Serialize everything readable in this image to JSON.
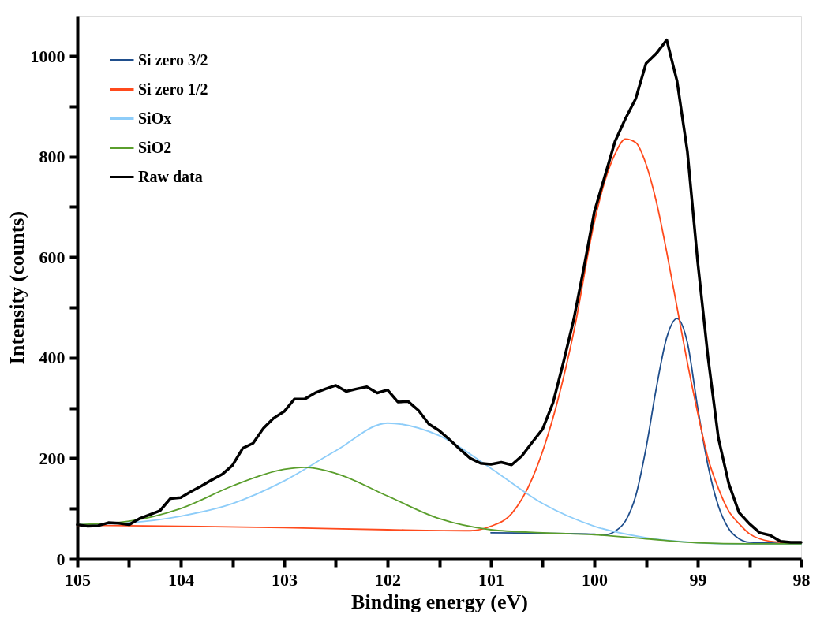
{
  "chart_data": {
    "type": "line",
    "xlabel": "Binding energy (eV)",
    "ylabel": "Intensity (counts)",
    "xlim": [
      105,
      98
    ],
    "ylim": [
      0,
      1080
    ],
    "xticks": [
      105,
      {
        "value": 104.5,
        "label": null
      },
      104,
      {
        "value": 103.5,
        "label": null
      },
      103,
      {
        "value": 102.5,
        "label": null
      },
      102,
      {
        "value": 101.5,
        "label": null
      },
      101,
      {
        "value": 100.5,
        "label": null
      },
      100,
      {
        "value": 99.5,
        "label": null
      },
      99,
      {
        "value": 98.5,
        "label": null
      },
      98
    ],
    "yticks": [
      0,
      {
        "value": 100,
        "label": null
      },
      200,
      {
        "value": 300,
        "label": null
      },
      400,
      {
        "value": 500,
        "label": null
      },
      600,
      {
        "value": 700,
        "label": null
      },
      800,
      {
        "value": 900,
        "label": null
      },
      1000
    ],
    "grid": false,
    "legend": "top left",
    "line_style": "solid",
    "marker": "none",
    "series": [
      {
        "name": "Si zero 3/2",
        "color": "#1f4e8c",
        "x": [
          101,
          100.5,
          100,
          99.9,
          99.8,
          99.7,
          99.6,
          99.5,
          99.4,
          99.3,
          99.2,
          99.1,
          99.0,
          98.9,
          98.8,
          98.7,
          98.6,
          98.5,
          98.0
        ],
        "values": [
          52,
          51,
          49,
          48,
          55,
          75,
          125,
          220,
          340,
          440,
          478,
          430,
          300,
          185,
          105,
          60,
          40,
          33,
          30
        ]
      },
      {
        "name": "Si zero 1/2",
        "color": "#ff4a1c",
        "x": [
          105,
          104,
          103,
          102,
          101.2,
          101.0,
          100.8,
          100.6,
          100.4,
          100.2,
          100.0,
          99.9,
          99.8,
          99.7,
          99.6,
          99.5,
          99.4,
          99.3,
          99.2,
          99.1,
          99.0,
          98.9,
          98.8,
          98.7,
          98.6,
          98.5,
          98.4,
          98.2,
          98.0
        ],
        "values": [
          67,
          65,
          62,
          58,
          56,
          65,
          90,
          160,
          280,
          450,
          670,
          750,
          805,
          835,
          828,
          785,
          710,
          610,
          500,
          390,
          290,
          200,
          140,
          95,
          70,
          50,
          40,
          33,
          32
        ]
      },
      {
        "name": "SiOx",
        "color": "#8ecdf9",
        "x": [
          105,
          104.5,
          104,
          103.5,
          103,
          102.5,
          102,
          101.5,
          101,
          100.5,
          100,
          99.5,
          99,
          98.5,
          98
        ],
        "values": [
          68,
          72,
          85,
          110,
          155,
          215,
          270,
          245,
          180,
          110,
          65,
          42,
          32,
          29,
          28
        ]
      },
      {
        "name": "SiO2",
        "color": "#5a9e2c",
        "x": [
          105,
          104.5,
          104,
          103.5,
          103,
          102.8,
          102.5,
          102,
          101.5,
          101,
          100.5,
          100,
          99.5,
          99,
          98.5,
          98
        ],
        "values": [
          68,
          75,
          100,
          145,
          178,
          182,
          170,
          125,
          80,
          58,
          52,
          48,
          40,
          32,
          30,
          30
        ]
      },
      {
        "name": "Raw data",
        "color": "#000000",
        "x": [
          105,
          104.9,
          104.8,
          104.7,
          104.6,
          104.5,
          104.4,
          104.3,
          104.2,
          104.1,
          104.0,
          103.9,
          103.8,
          103.7,
          103.6,
          103.5,
          103.4,
          103.3,
          103.2,
          103.1,
          103.0,
          102.9,
          102.8,
          102.7,
          102.6,
          102.5,
          102.4,
          102.3,
          102.2,
          102.1,
          102.0,
          101.9,
          101.8,
          101.7,
          101.6,
          101.5,
          101.4,
          101.3,
          101.2,
          101.1,
          101.0,
          100.9,
          100.8,
          100.7,
          100.6,
          100.5,
          100.4,
          100.3,
          100.2,
          100.1,
          100.0,
          99.9,
          99.8,
          99.7,
          99.6,
          99.5,
          99.4,
          99.3,
          99.2,
          99.1,
          99.0,
          98.9,
          98.8,
          98.7,
          98.6,
          98.5,
          98.4,
          98.3,
          98.2,
          98.1,
          98.0
        ],
        "values": [
          68,
          65,
          66,
          72,
          71,
          68,
          80,
          88,
          96,
          120,
          122,
          134,
          145,
          157,
          168,
          186,
          220,
          230,
          260,
          280,
          293,
          318,
          318,
          330,
          338,
          345,
          333,
          338,
          342,
          330,
          336,
          312,
          313,
          295,
          268,
          255,
          237,
          218,
          200,
          190,
          188,
          192,
          187,
          205,
          232,
          258,
          310,
          390,
          475,
          580,
          690,
          760,
          830,
          875,
          915,
          985,
          1005,
          1032,
          950,
          810,
          590,
          400,
          240,
          150,
          92,
          70,
          52,
          47,
          35,
          33,
          33
        ]
      }
    ]
  }
}
